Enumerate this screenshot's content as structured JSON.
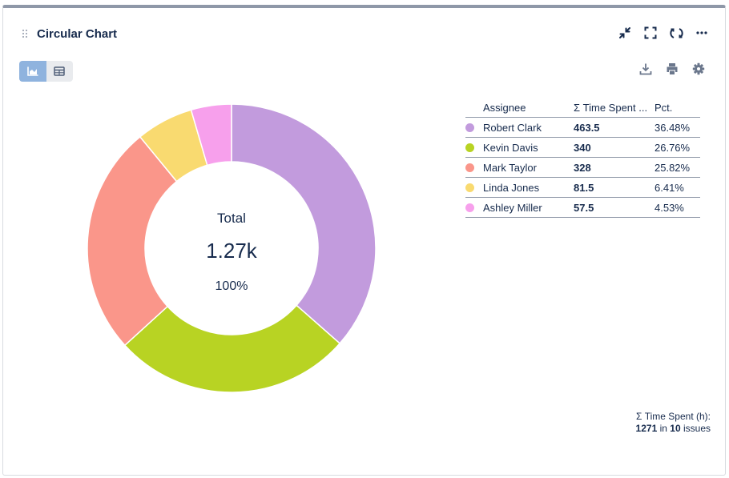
{
  "header": {
    "title": "Circular Chart",
    "icons": [
      "collapse-icon",
      "fullscreen-icon",
      "refresh-icon",
      "more-icon"
    ]
  },
  "view_toggle": {
    "options": [
      "chart-view-icon",
      "table-view-icon"
    ],
    "active": "chart-view-icon"
  },
  "toolbar": {
    "icons": [
      "download-icon",
      "print-icon",
      "settings-icon"
    ]
  },
  "colors": {
    "accent": "#8fb3de",
    "text": "#172b4d",
    "series": [
      "#c29bdd",
      "#b8d323",
      "#fa968a",
      "#f9da70",
      "#f7a0ec"
    ]
  },
  "chart_data": {
    "type": "pie",
    "variant": "donut",
    "title": "Circular Chart",
    "categories": [
      "Robert Clark",
      "Kevin Davis",
      "Mark Taylor",
      "Linda Jones",
      "Ashley Miller"
    ],
    "values": [
      463.5,
      340,
      328,
      81.5,
      57.5
    ],
    "center": {
      "label": "Total",
      "value": "1.27k",
      "percent": "100%"
    }
  },
  "table": {
    "headers": {
      "assignee": "Assignee",
      "value": "Σ Time Spent ...",
      "pct": "Pct."
    },
    "rows": [
      {
        "name": "Robert Clark",
        "value": "463.5",
        "pct": "36.48%"
      },
      {
        "name": "Kevin Davis",
        "value": "340",
        "pct": "26.76%"
      },
      {
        "name": "Mark Taylor",
        "value": "328",
        "pct": "25.82%"
      },
      {
        "name": "Linda Jones",
        "value": "81.5",
        "pct": "6.41%"
      },
      {
        "name": "Ashley Miller",
        "value": "57.5",
        "pct": "4.53%"
      }
    ]
  },
  "footer": {
    "label": "Σ Time Spent (h):",
    "total": "1271",
    "in_text": "in",
    "count": "10",
    "issues_text": "issues"
  }
}
